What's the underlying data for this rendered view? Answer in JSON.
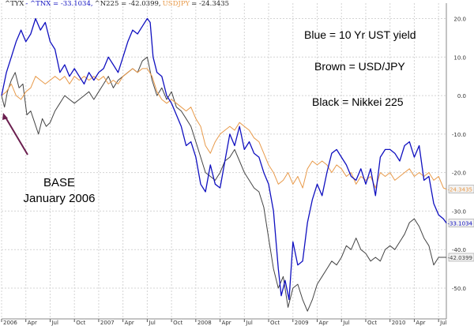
{
  "legend": {
    "entries": [
      {
        "label": "^TYX",
        "color": "#222222"
      },
      {
        "label": "- ^TNX = -33.1034,",
        "color": "#1010c0"
      },
      {
        "label": "^N225 = -42.0399,",
        "color": "#222222"
      },
      {
        "label": "USDJPY",
        "color": "#e89a4a"
      },
      {
        "label": "= -24.3435",
        "color": "#222222"
      }
    ]
  },
  "annotations": {
    "blue": "Blue = 10 Yr UST yield",
    "brown": "Brown = USD/JPY",
    "black": "Black = Nikkei 225",
    "base_line1": "BASE",
    "base_line2": "January 2006"
  },
  "chart_data": {
    "type": "line",
    "ylim": [
      -58,
      24
    ],
    "y_ticks": [
      20,
      10,
      0,
      -10,
      -20,
      -30,
      -40,
      -50
    ],
    "y_tick_labels": [
      "20.0",
      "10.0",
      "0.0",
      "-10.0",
      "-20.0",
      "-30.0",
      "-40.0",
      "-50.0"
    ],
    "x_ticks": [
      {
        "t": 2006.0,
        "label": "2006"
      },
      {
        "t": 2006.25,
        "label": "Apr"
      },
      {
        "t": 2006.5,
        "label": "Jul"
      },
      {
        "t": 2006.75,
        "label": "Oct"
      },
      {
        "t": 2007.0,
        "label": "2007"
      },
      {
        "t": 2007.25,
        "label": "Apr"
      },
      {
        "t": 2007.5,
        "label": "Jul"
      },
      {
        "t": 2007.75,
        "label": "Oct"
      },
      {
        "t": 2008.0,
        "label": "2008"
      },
      {
        "t": 2008.25,
        "label": "Apr"
      },
      {
        "t": 2008.5,
        "label": "Jul"
      },
      {
        "t": 2008.75,
        "label": "Oct"
      },
      {
        "t": 2009.0,
        "label": "2009"
      },
      {
        "t": 2009.25,
        "label": "Apr"
      },
      {
        "t": 2009.5,
        "label": "Jul"
      },
      {
        "t": 2009.75,
        "label": "Oct"
      },
      {
        "t": 2010.0,
        "label": "2010"
      },
      {
        "t": 2010.25,
        "label": "Apr"
      },
      {
        "t": 2010.5,
        "label": "Jul"
      }
    ],
    "x_range": [
      2006.0,
      2010.58
    ],
    "series": [
      {
        "name": "^TNX",
        "color": "#1010c0",
        "end_label": "-33.1034",
        "points": [
          [
            2006.0,
            0
          ],
          [
            2006.05,
            6
          ],
          [
            2006.1,
            10
          ],
          [
            2006.15,
            14
          ],
          [
            2006.2,
            17
          ],
          [
            2006.25,
            14
          ],
          [
            2006.3,
            16
          ],
          [
            2006.35,
            20
          ],
          [
            2006.4,
            17
          ],
          [
            2006.45,
            19
          ],
          [
            2006.5,
            14
          ],
          [
            2006.55,
            12
          ],
          [
            2006.6,
            6
          ],
          [
            2006.65,
            8
          ],
          [
            2006.7,
            5
          ],
          [
            2006.75,
            7
          ],
          [
            2006.8,
            5
          ],
          [
            2006.85,
            3
          ],
          [
            2006.9,
            6
          ],
          [
            2006.95,
            4
          ],
          [
            2007.0,
            6
          ],
          [
            2007.05,
            7
          ],
          [
            2007.1,
            10
          ],
          [
            2007.15,
            8
          ],
          [
            2007.2,
            6
          ],
          [
            2007.25,
            10
          ],
          [
            2007.3,
            14
          ],
          [
            2007.35,
            17
          ],
          [
            2007.4,
            16
          ],
          [
            2007.45,
            18
          ],
          [
            2007.5,
            20
          ],
          [
            2007.53,
            19
          ],
          [
            2007.56,
            10
          ],
          [
            2007.6,
            6
          ],
          [
            2007.65,
            5
          ],
          [
            2007.7,
            0
          ],
          [
            2007.75,
            -2
          ],
          [
            2007.8,
            -5
          ],
          [
            2007.85,
            -8
          ],
          [
            2007.9,
            -13
          ],
          [
            2007.95,
            -12
          ],
          [
            2008.0,
            -16
          ],
          [
            2008.05,
            -23
          ],
          [
            2008.1,
            -25
          ],
          [
            2008.15,
            -18
          ],
          [
            2008.2,
            -23
          ],
          [
            2008.25,
            -24
          ],
          [
            2008.3,
            -17
          ],
          [
            2008.35,
            -10
          ],
          [
            2008.4,
            -13
          ],
          [
            2008.45,
            -8
          ],
          [
            2008.5,
            -14
          ],
          [
            2008.55,
            -12
          ],
          [
            2008.6,
            -15
          ],
          [
            2008.65,
            -16
          ],
          [
            2008.7,
            -20
          ],
          [
            2008.75,
            -23
          ],
          [
            2008.8,
            -30
          ],
          [
            2008.85,
            -45
          ],
          [
            2008.88,
            -52
          ],
          [
            2008.92,
            -48
          ],
          [
            2008.96,
            -53
          ],
          [
            2009.0,
            -38
          ],
          [
            2009.05,
            -44
          ],
          [
            2009.1,
            -43
          ],
          [
            2009.15,
            -33
          ],
          [
            2009.2,
            -27
          ],
          [
            2009.25,
            -23
          ],
          [
            2009.3,
            -26
          ],
          [
            2009.35,
            -20
          ],
          [
            2009.4,
            -15
          ],
          [
            2009.45,
            -14
          ],
          [
            2009.5,
            -16
          ],
          [
            2009.55,
            -18
          ],
          [
            2009.6,
            -21
          ],
          [
            2009.65,
            -22
          ],
          [
            2009.7,
            -19
          ],
          [
            2009.75,
            -23
          ],
          [
            2009.8,
            -19
          ],
          [
            2009.85,
            -26
          ],
          [
            2009.9,
            -16
          ],
          [
            2009.95,
            -14
          ],
          [
            2010.0,
            -14
          ],
          [
            2010.05,
            -15
          ],
          [
            2010.1,
            -17
          ],
          [
            2010.15,
            -13
          ],
          [
            2010.2,
            -12
          ],
          [
            2010.25,
            -16
          ],
          [
            2010.3,
            -13
          ],
          [
            2010.35,
            -22
          ],
          [
            2010.4,
            -21
          ],
          [
            2010.45,
            -28
          ],
          [
            2010.5,
            -31
          ],
          [
            2010.55,
            -32
          ],
          [
            2010.58,
            -33.1
          ]
        ]
      },
      {
        "name": "USDJPY",
        "color": "#e89a4a",
        "end_label": "-24.3435",
        "points": [
          [
            2006.0,
            0
          ],
          [
            2006.05,
            1
          ],
          [
            2006.1,
            3
          ],
          [
            2006.15,
            0
          ],
          [
            2006.2,
            -1
          ],
          [
            2006.25,
            1
          ],
          [
            2006.3,
            2
          ],
          [
            2006.35,
            5
          ],
          [
            2006.4,
            4
          ],
          [
            2006.45,
            3
          ],
          [
            2006.5,
            4
          ],
          [
            2006.55,
            5
          ],
          [
            2006.6,
            4
          ],
          [
            2006.65,
            5
          ],
          [
            2006.7,
            3
          ],
          [
            2006.75,
            5
          ],
          [
            2006.8,
            4
          ],
          [
            2006.85,
            5
          ],
          [
            2006.9,
            4
          ],
          [
            2006.95,
            5
          ],
          [
            2007.0,
            4
          ],
          [
            2007.05,
            5
          ],
          [
            2007.1,
            3
          ],
          [
            2007.15,
            4
          ],
          [
            2007.2,
            3
          ],
          [
            2007.25,
            5
          ],
          [
            2007.3,
            6
          ],
          [
            2007.35,
            7
          ],
          [
            2007.4,
            6
          ],
          [
            2007.45,
            7
          ],
          [
            2007.5,
            7
          ],
          [
            2007.55,
            5
          ],
          [
            2007.6,
            1
          ],
          [
            2007.65,
            -1
          ],
          [
            2007.7,
            -2
          ],
          [
            2007.75,
            -1
          ],
          [
            2007.8,
            -2
          ],
          [
            2007.85,
            -3
          ],
          [
            2007.9,
            -4
          ],
          [
            2007.95,
            -3
          ],
          [
            2008.0,
            -6
          ],
          [
            2008.05,
            -8
          ],
          [
            2008.1,
            -13
          ],
          [
            2008.15,
            -15
          ],
          [
            2008.2,
            -12
          ],
          [
            2008.25,
            -10
          ],
          [
            2008.3,
            -9
          ],
          [
            2008.35,
            -8
          ],
          [
            2008.4,
            -9
          ],
          [
            2008.45,
            -7
          ],
          [
            2008.5,
            -8
          ],
          [
            2008.55,
            -9
          ],
          [
            2008.6,
            -11
          ],
          [
            2008.65,
            -12
          ],
          [
            2008.7,
            -15
          ],
          [
            2008.75,
            -18
          ],
          [
            2008.8,
            -20
          ],
          [
            2008.85,
            -23
          ],
          [
            2008.9,
            -22
          ],
          [
            2008.95,
            -20
          ],
          [
            2009.0,
            -23
          ],
          [
            2009.05,
            -21
          ],
          [
            2009.1,
            -24
          ],
          [
            2009.15,
            -19
          ],
          [
            2009.2,
            -17
          ],
          [
            2009.25,
            -18
          ],
          [
            2009.3,
            -17
          ],
          [
            2009.35,
            -18
          ],
          [
            2009.4,
            -20
          ],
          [
            2009.45,
            -18
          ],
          [
            2009.5,
            -19
          ],
          [
            2009.55,
            -21
          ],
          [
            2009.6,
            -20
          ],
          [
            2009.65,
            -23
          ],
          [
            2009.7,
            -21
          ],
          [
            2009.75,
            -22
          ],
          [
            2009.8,
            -21
          ],
          [
            2009.85,
            -24
          ],
          [
            2009.9,
            -20
          ],
          [
            2009.95,
            -21
          ],
          [
            2010.0,
            -20
          ],
          [
            2010.05,
            -22
          ],
          [
            2010.1,
            -21
          ],
          [
            2010.15,
            -20
          ],
          [
            2010.2,
            -19
          ],
          [
            2010.25,
            -21
          ],
          [
            2010.3,
            -20
          ],
          [
            2010.35,
            -21
          ],
          [
            2010.4,
            -20
          ],
          [
            2010.45,
            -22
          ],
          [
            2010.5,
            -21
          ],
          [
            2010.55,
            -24
          ],
          [
            2010.58,
            -24.3
          ]
        ]
      },
      {
        "name": "^N225",
        "color": "#444444",
        "end_label": "-42.0399",
        "points": [
          [
            2006.0,
            0
          ],
          [
            2006.03,
            -3
          ],
          [
            2006.06,
            1
          ],
          [
            2006.1,
            4
          ],
          [
            2006.14,
            6
          ],
          [
            2006.18,
            2
          ],
          [
            2006.22,
            3
          ],
          [
            2006.26,
            -5
          ],
          [
            2006.3,
            -4
          ],
          [
            2006.34,
            -7
          ],
          [
            2006.38,
            -10
          ],
          [
            2006.42,
            -6
          ],
          [
            2006.46,
            -8
          ],
          [
            2006.5,
            -7
          ],
          [
            2006.55,
            -4
          ],
          [
            2006.6,
            -2
          ],
          [
            2006.65,
            0
          ],
          [
            2006.7,
            -1
          ],
          [
            2006.75,
            -2
          ],
          [
            2006.8,
            -1
          ],
          [
            2006.85,
            0
          ],
          [
            2006.9,
            1
          ],
          [
            2006.95,
            -1
          ],
          [
            2007.0,
            1
          ],
          [
            2007.05,
            3
          ],
          [
            2007.1,
            5
          ],
          [
            2007.15,
            2
          ],
          [
            2007.2,
            4
          ],
          [
            2007.25,
            5
          ],
          [
            2007.3,
            6
          ],
          [
            2007.35,
            7
          ],
          [
            2007.4,
            6
          ],
          [
            2007.45,
            9
          ],
          [
            2007.5,
            10
          ],
          [
            2007.55,
            4
          ],
          [
            2007.6,
            0
          ],
          [
            2007.65,
            2
          ],
          [
            2007.7,
            -1
          ],
          [
            2007.75,
            1
          ],
          [
            2007.8,
            -3
          ],
          [
            2007.85,
            -4
          ],
          [
            2007.9,
            -6
          ],
          [
            2007.95,
            -8
          ],
          [
            2008.0,
            -12
          ],
          [
            2008.05,
            -16
          ],
          [
            2008.1,
            -20
          ],
          [
            2008.15,
            -21
          ],
          [
            2008.2,
            -22
          ],
          [
            2008.25,
            -20
          ],
          [
            2008.3,
            -17
          ],
          [
            2008.35,
            -16
          ],
          [
            2008.4,
            -14
          ],
          [
            2008.45,
            -17
          ],
          [
            2008.5,
            -20
          ],
          [
            2008.55,
            -22
          ],
          [
            2008.6,
            -24
          ],
          [
            2008.65,
            -25
          ],
          [
            2008.7,
            -29
          ],
          [
            2008.75,
            -37
          ],
          [
            2008.8,
            -45
          ],
          [
            2008.85,
            -50
          ],
          [
            2008.9,
            -47
          ],
          [
            2008.95,
            -55
          ],
          [
            2009.0,
            -50
          ],
          [
            2009.05,
            -49
          ],
          [
            2009.1,
            -53
          ],
          [
            2009.15,
            -56
          ],
          [
            2009.2,
            -53
          ],
          [
            2009.25,
            -49
          ],
          [
            2009.3,
            -47
          ],
          [
            2009.35,
            -45
          ],
          [
            2009.4,
            -43
          ],
          [
            2009.45,
            -44
          ],
          [
            2009.5,
            -42
          ],
          [
            2009.55,
            -39
          ],
          [
            2009.6,
            -40
          ],
          [
            2009.65,
            -37
          ],
          [
            2009.7,
            -40
          ],
          [
            2009.75,
            -41
          ],
          [
            2009.8,
            -43
          ],
          [
            2009.85,
            -42
          ],
          [
            2009.9,
            -43
          ],
          [
            2009.95,
            -40
          ],
          [
            2010.0,
            -39
          ],
          [
            2010.05,
            -40
          ],
          [
            2010.1,
            -38
          ],
          [
            2010.15,
            -36
          ],
          [
            2010.2,
            -33
          ],
          [
            2010.25,
            -32
          ],
          [
            2010.3,
            -34
          ],
          [
            2010.35,
            -37
          ],
          [
            2010.4,
            -39
          ],
          [
            2010.45,
            -44
          ],
          [
            2010.5,
            -42
          ],
          [
            2010.55,
            -42
          ],
          [
            2010.58,
            -42.0
          ]
        ]
      }
    ]
  }
}
